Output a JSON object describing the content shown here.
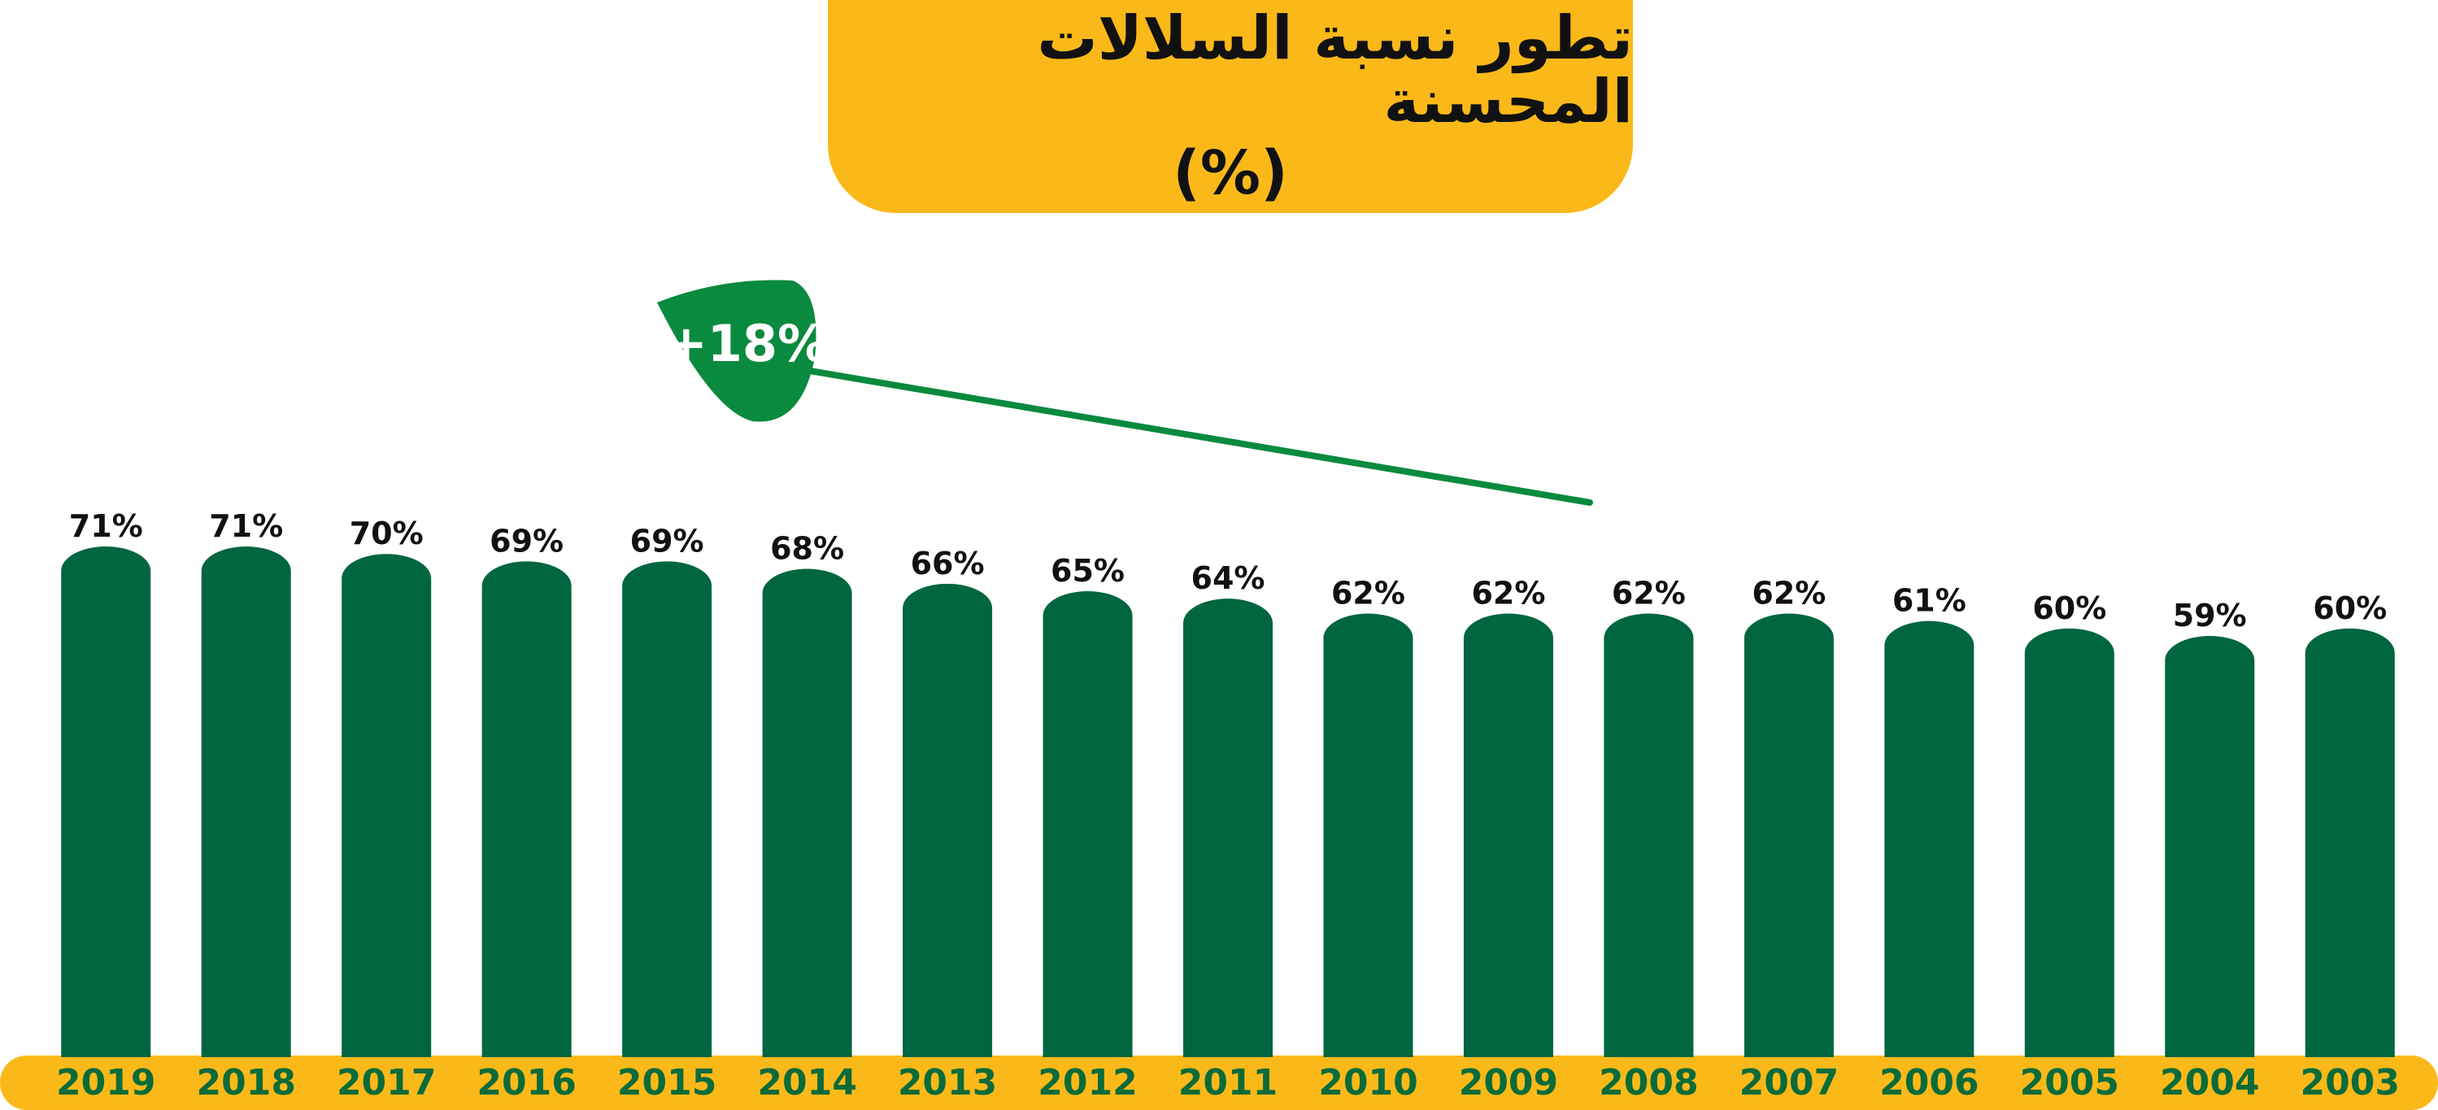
{
  "title": {
    "line1": "تطور نسبة السلالات المحسنة",
    "line2": "(%)"
  },
  "annotation": {
    "label": "+18%"
  },
  "colors": {
    "bar": "#006640",
    "axis_band": "#fbb919",
    "title_box": "#fbb919",
    "badge": "#0a8a3e",
    "trend_line": "#0a8a3e",
    "year_text": "#0b6b3a"
  },
  "chart_data": {
    "type": "bar",
    "title": "تطور نسبة السلالات المحسنة (%)",
    "xlabel": "",
    "ylabel": "",
    "x_direction": "right-to-left",
    "categories": [
      "2019",
      "2018",
      "2017",
      "2016",
      "2015",
      "2014",
      "2013",
      "2012",
      "2011",
      "2010",
      "2009",
      "2008",
      "2007",
      "2006",
      "2005",
      "2004",
      "2003"
    ],
    "values": [
      71,
      71,
      70,
      69,
      69,
      68,
      66,
      65,
      64,
      62,
      62,
      62,
      62,
      61,
      60,
      59,
      60
    ],
    "value_labels": [
      "71%",
      "71%",
      "70%",
      "69%",
      "69%",
      "68%",
      "66%",
      "65%",
      "64%",
      "62%",
      "62%",
      "62%",
      "62%",
      "61%",
      "60%",
      "59%",
      "60%"
    ],
    "grid": false,
    "legend": "none"
  }
}
